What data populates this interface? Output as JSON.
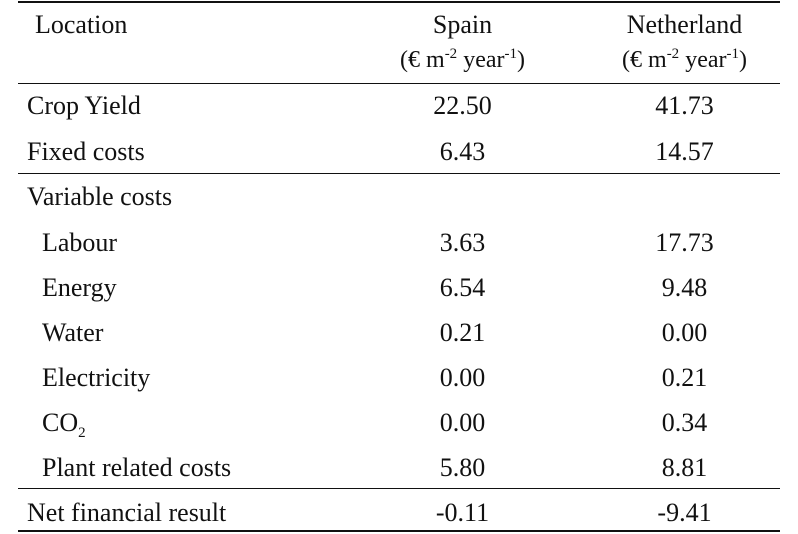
{
  "table": {
    "header": {
      "location_label": "Location",
      "col1_name": "Spain",
      "col2_name": "Netherland",
      "unit": {
        "open": "(€ m",
        "exp1": "-2",
        "mid": " year",
        "exp2": "-1",
        "close": ")"
      }
    },
    "rows": [
      {
        "label": "Crop Yield",
        "spain": "22.50",
        "netherland": "41.73"
      },
      {
        "label": "Fixed costs",
        "spain": "6.43",
        "netherland": "14.57"
      },
      {
        "label": "Variable costs",
        "spain": "",
        "netherland": ""
      },
      {
        "label": "Labour",
        "spain": "3.63",
        "netherland": "17.73"
      },
      {
        "label": "Energy",
        "spain": "6.54",
        "netherland": "9.48"
      },
      {
        "label": "Water",
        "spain": "0.21",
        "netherland": "0.00"
      },
      {
        "label": "Electricity",
        "spain": "0.00",
        "netherland": "0.21"
      },
      {
        "label": "CO",
        "label_sub": "2",
        "spain": "0.00",
        "netherland": "0.34"
      },
      {
        "label": "Plant related costs",
        "spain": "5.80",
        "netherland": "8.81"
      },
      {
        "label": "Net financial result",
        "spain": "-0.11",
        "netherland": "-9.41"
      }
    ]
  }
}
